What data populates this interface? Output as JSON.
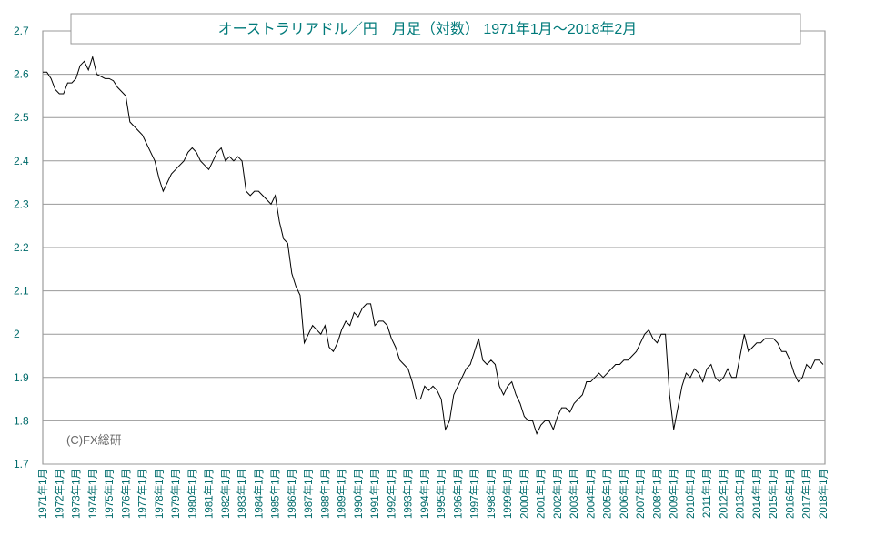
{
  "chart_data": {
    "type": "line",
    "title": "オーストラリアドル／円　月足（対数） 1971年1月～2018年2月",
    "annotation": "(C)FX総研",
    "categories": [
      "1971年1月",
      null,
      null,
      null,
      "1972年1月",
      null,
      null,
      null,
      "1973年1月",
      null,
      null,
      null,
      "1974年1月",
      null,
      null,
      null,
      "1975年1月",
      null,
      null,
      null,
      "1976年1月",
      null,
      null,
      null,
      "1977年1月",
      null,
      null,
      null,
      "1978年1月",
      null,
      null,
      null,
      "1979年1月",
      null,
      null,
      null,
      "1980年1月",
      null,
      null,
      null,
      "1981年1月",
      null,
      null,
      null,
      "1982年1月",
      null,
      null,
      null,
      "1983年1月",
      null,
      null,
      null,
      "1984年1月",
      null,
      null,
      null,
      "1985年1月",
      null,
      null,
      null,
      "1986年1月",
      null,
      null,
      null,
      "1987年1月",
      null,
      null,
      null,
      "1988年1月",
      null,
      null,
      null,
      "1989年1月",
      null,
      null,
      null,
      "1990年1月",
      null,
      null,
      null,
      "1991年1月",
      null,
      null,
      null,
      "1992年1月",
      null,
      null,
      null,
      "1993年1月",
      null,
      null,
      null,
      "1994年1月",
      null,
      null,
      null,
      "1995年1月",
      null,
      null,
      null,
      "1996年1月",
      null,
      null,
      null,
      "1997年1月",
      null,
      null,
      null,
      "1998年1月",
      null,
      null,
      null,
      "1999年1月",
      null,
      null,
      null,
      "2000年1月",
      null,
      null,
      null,
      "2001年1月",
      null,
      null,
      null,
      "2002年1月",
      null,
      null,
      null,
      "2003年1月",
      null,
      null,
      null,
      "2004年1月",
      null,
      null,
      null,
      "2005年1月",
      null,
      null,
      null,
      "2006年1月",
      null,
      null,
      null,
      "2007年1月",
      null,
      null,
      null,
      "2008年1月",
      null,
      null,
      null,
      "2009年1月",
      null,
      null,
      null,
      "2010年1月",
      null,
      null,
      null,
      "2011年1月",
      null,
      null,
      null,
      "2012年1月",
      null,
      null,
      null,
      "2013年1月",
      null,
      null,
      null,
      "2014年1月",
      null,
      null,
      null,
      "2015年1月",
      null,
      null,
      null,
      "2016年1月",
      null,
      null,
      null,
      "2017年1月",
      null,
      null,
      null,
      "2018年1月"
    ],
    "values": [
      2.605,
      2.605,
      2.59,
      2.565,
      2.555,
      2.555,
      2.58,
      2.58,
      2.59,
      2.62,
      2.63,
      2.61,
      2.64,
      2.6,
      2.595,
      2.59,
      2.59,
      2.585,
      2.57,
      2.56,
      2.55,
      2.49,
      2.48,
      2.47,
      2.46,
      2.44,
      2.42,
      2.4,
      2.36,
      2.33,
      2.35,
      2.37,
      2.38,
      2.39,
      2.4,
      2.42,
      2.43,
      2.42,
      2.4,
      2.39,
      2.38,
      2.4,
      2.42,
      2.43,
      2.4,
      2.41,
      2.4,
      2.41,
      2.4,
      2.33,
      2.32,
      2.33,
      2.33,
      2.32,
      2.31,
      2.3,
      2.32,
      2.26,
      2.22,
      2.21,
      2.14,
      2.11,
      2.09,
      1.98,
      2.0,
      2.02,
      2.01,
      2.0,
      2.02,
      1.97,
      1.96,
      1.98,
      2.01,
      2.03,
      2.02,
      2.05,
      2.04,
      2.06,
      2.07,
      2.07,
      2.02,
      2.03,
      2.03,
      2.02,
      1.99,
      1.97,
      1.94,
      1.93,
      1.92,
      1.89,
      1.85,
      1.85,
      1.88,
      1.87,
      1.88,
      1.87,
      1.85,
      1.78,
      1.8,
      1.86,
      1.88,
      1.9,
      1.92,
      1.93,
      1.96,
      1.99,
      1.94,
      1.93,
      1.94,
      1.93,
      1.88,
      1.86,
      1.88,
      1.89,
      1.86,
      1.84,
      1.81,
      1.8,
      1.8,
      1.77,
      1.79,
      1.8,
      1.8,
      1.78,
      1.81,
      1.83,
      1.83,
      1.82,
      1.84,
      1.85,
      1.86,
      1.89,
      1.89,
      1.9,
      1.91,
      1.9,
      1.91,
      1.92,
      1.93,
      1.93,
      1.94,
      1.94,
      1.95,
      1.96,
      1.98,
      2.0,
      2.01,
      1.99,
      1.98,
      2.0,
      2.0,
      1.86,
      1.78,
      1.83,
      1.88,
      1.91,
      1.9,
      1.92,
      1.91,
      1.89,
      1.92,
      1.93,
      1.9,
      1.89,
      1.9,
      1.92,
      1.9,
      1.9,
      1.95,
      2.0,
      1.96,
      1.97,
      1.98,
      1.98,
      1.99,
      1.99,
      1.99,
      1.98,
      1.96,
      1.96,
      1.94,
      1.91,
      1.89,
      1.9,
      1.93,
      1.92,
      1.94,
      1.94,
      1.93
    ],
    "color": "#000000",
    "ylim": [
      1.7,
      2.7
    ],
    "yticks": [
      1.7,
      1.8,
      1.9,
      2,
      2.1,
      2.2,
      2.3,
      2.4,
      2.5,
      2.6,
      2.7
    ],
    "grid": true
  }
}
